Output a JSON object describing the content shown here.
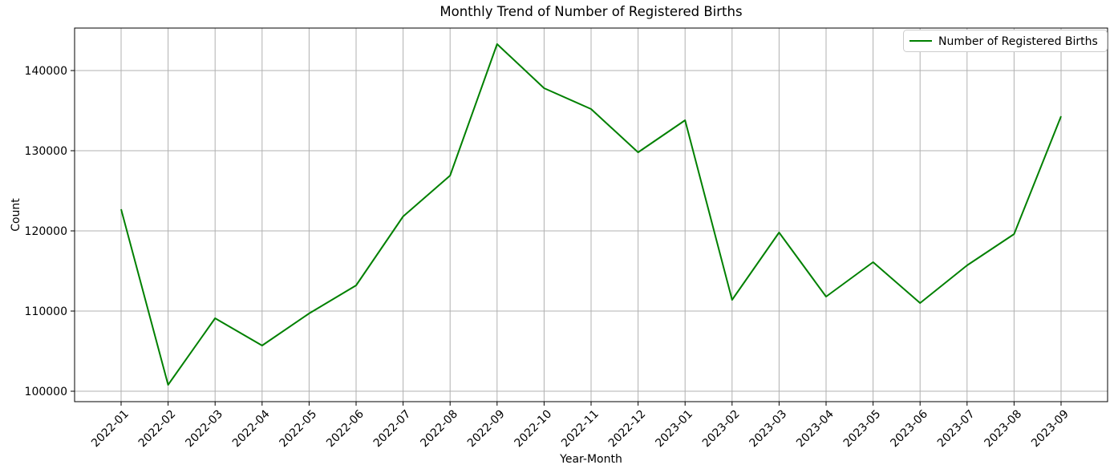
{
  "chart_data": {
    "type": "line",
    "title": "Monthly Trend of Number of Registered Births",
    "xlabel": "Year-Month",
    "ylabel": "Count",
    "categories": [
      "2022-01",
      "2022-02",
      "2022-03",
      "2022-04",
      "2022-05",
      "2022-06",
      "2022-07",
      "2022-08",
      "2022-09",
      "2022-10",
      "2022-11",
      "2022-12",
      "2023-01",
      "2023-02",
      "2023-03",
      "2023-04",
      "2023-05",
      "2023-06",
      "2023-07",
      "2023-08",
      "2023-09"
    ],
    "series": [
      {
        "name": "Number of Registered Births",
        "color": "#008000",
        "values": [
          122700,
          100800,
          109100,
          105700,
          109700,
          113200,
          121800,
          126900,
          143300,
          137800,
          135200,
          129800,
          133800,
          111400,
          119800,
          111800,
          116100,
          111000,
          115700,
          119600,
          134300
        ]
      }
    ],
    "y_ticks": [
      100000,
      110000,
      120000,
      130000,
      140000
    ],
    "ylim": [
      98700,
      145300
    ],
    "grid": true,
    "legend_position": "upper right"
  },
  "colors": {
    "line": "#008000",
    "grid": "#b0b0b0",
    "axis": "#000000",
    "background": "#ffffff",
    "legend_border": "#cccccc"
  }
}
